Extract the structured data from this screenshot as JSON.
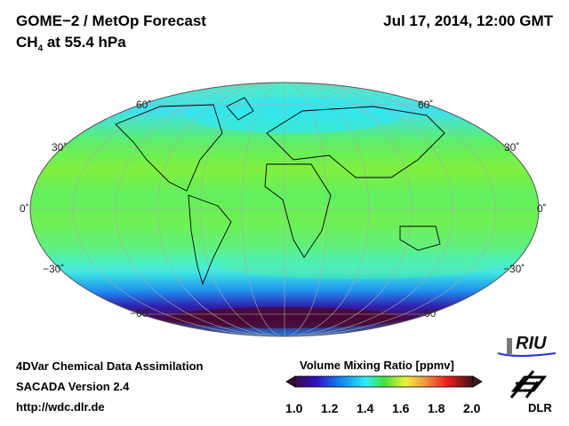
{
  "header": {
    "title": "GOME−2 / MetOp Forecast",
    "species": "CH",
    "species_sub": "4",
    "level": " at 55.4 hPa",
    "datetime": "Jul 17, 2014, 12:00 GMT"
  },
  "map": {
    "projection": "Mollweide",
    "lat_labels": [
      "60˚",
      "30˚",
      "0˚",
      "−30˚",
      "−60˚"
    ]
  },
  "colorbar": {
    "title": "Volume Mixing Ratio [ppmv]",
    "ticks": [
      "1.0",
      "1.2",
      "1.4",
      "1.6",
      "1.8",
      "2.0"
    ],
    "range": [
      1.0,
      2.0
    ],
    "colors": [
      "#3a0a3a",
      "#3010a0",
      "#1060f0",
      "#30f0f0",
      "#40e040",
      "#f0f040",
      "#f0a040",
      "#f02020",
      "#501010"
    ]
  },
  "footer": {
    "line1": "4DVar Chemical Data Assimilation",
    "line2": "SACADA Version 2.4",
    "line3": "http://wdc.dlr.de"
  },
  "logos": {
    "riu": "RIU",
    "dlr": "DLR"
  }
}
